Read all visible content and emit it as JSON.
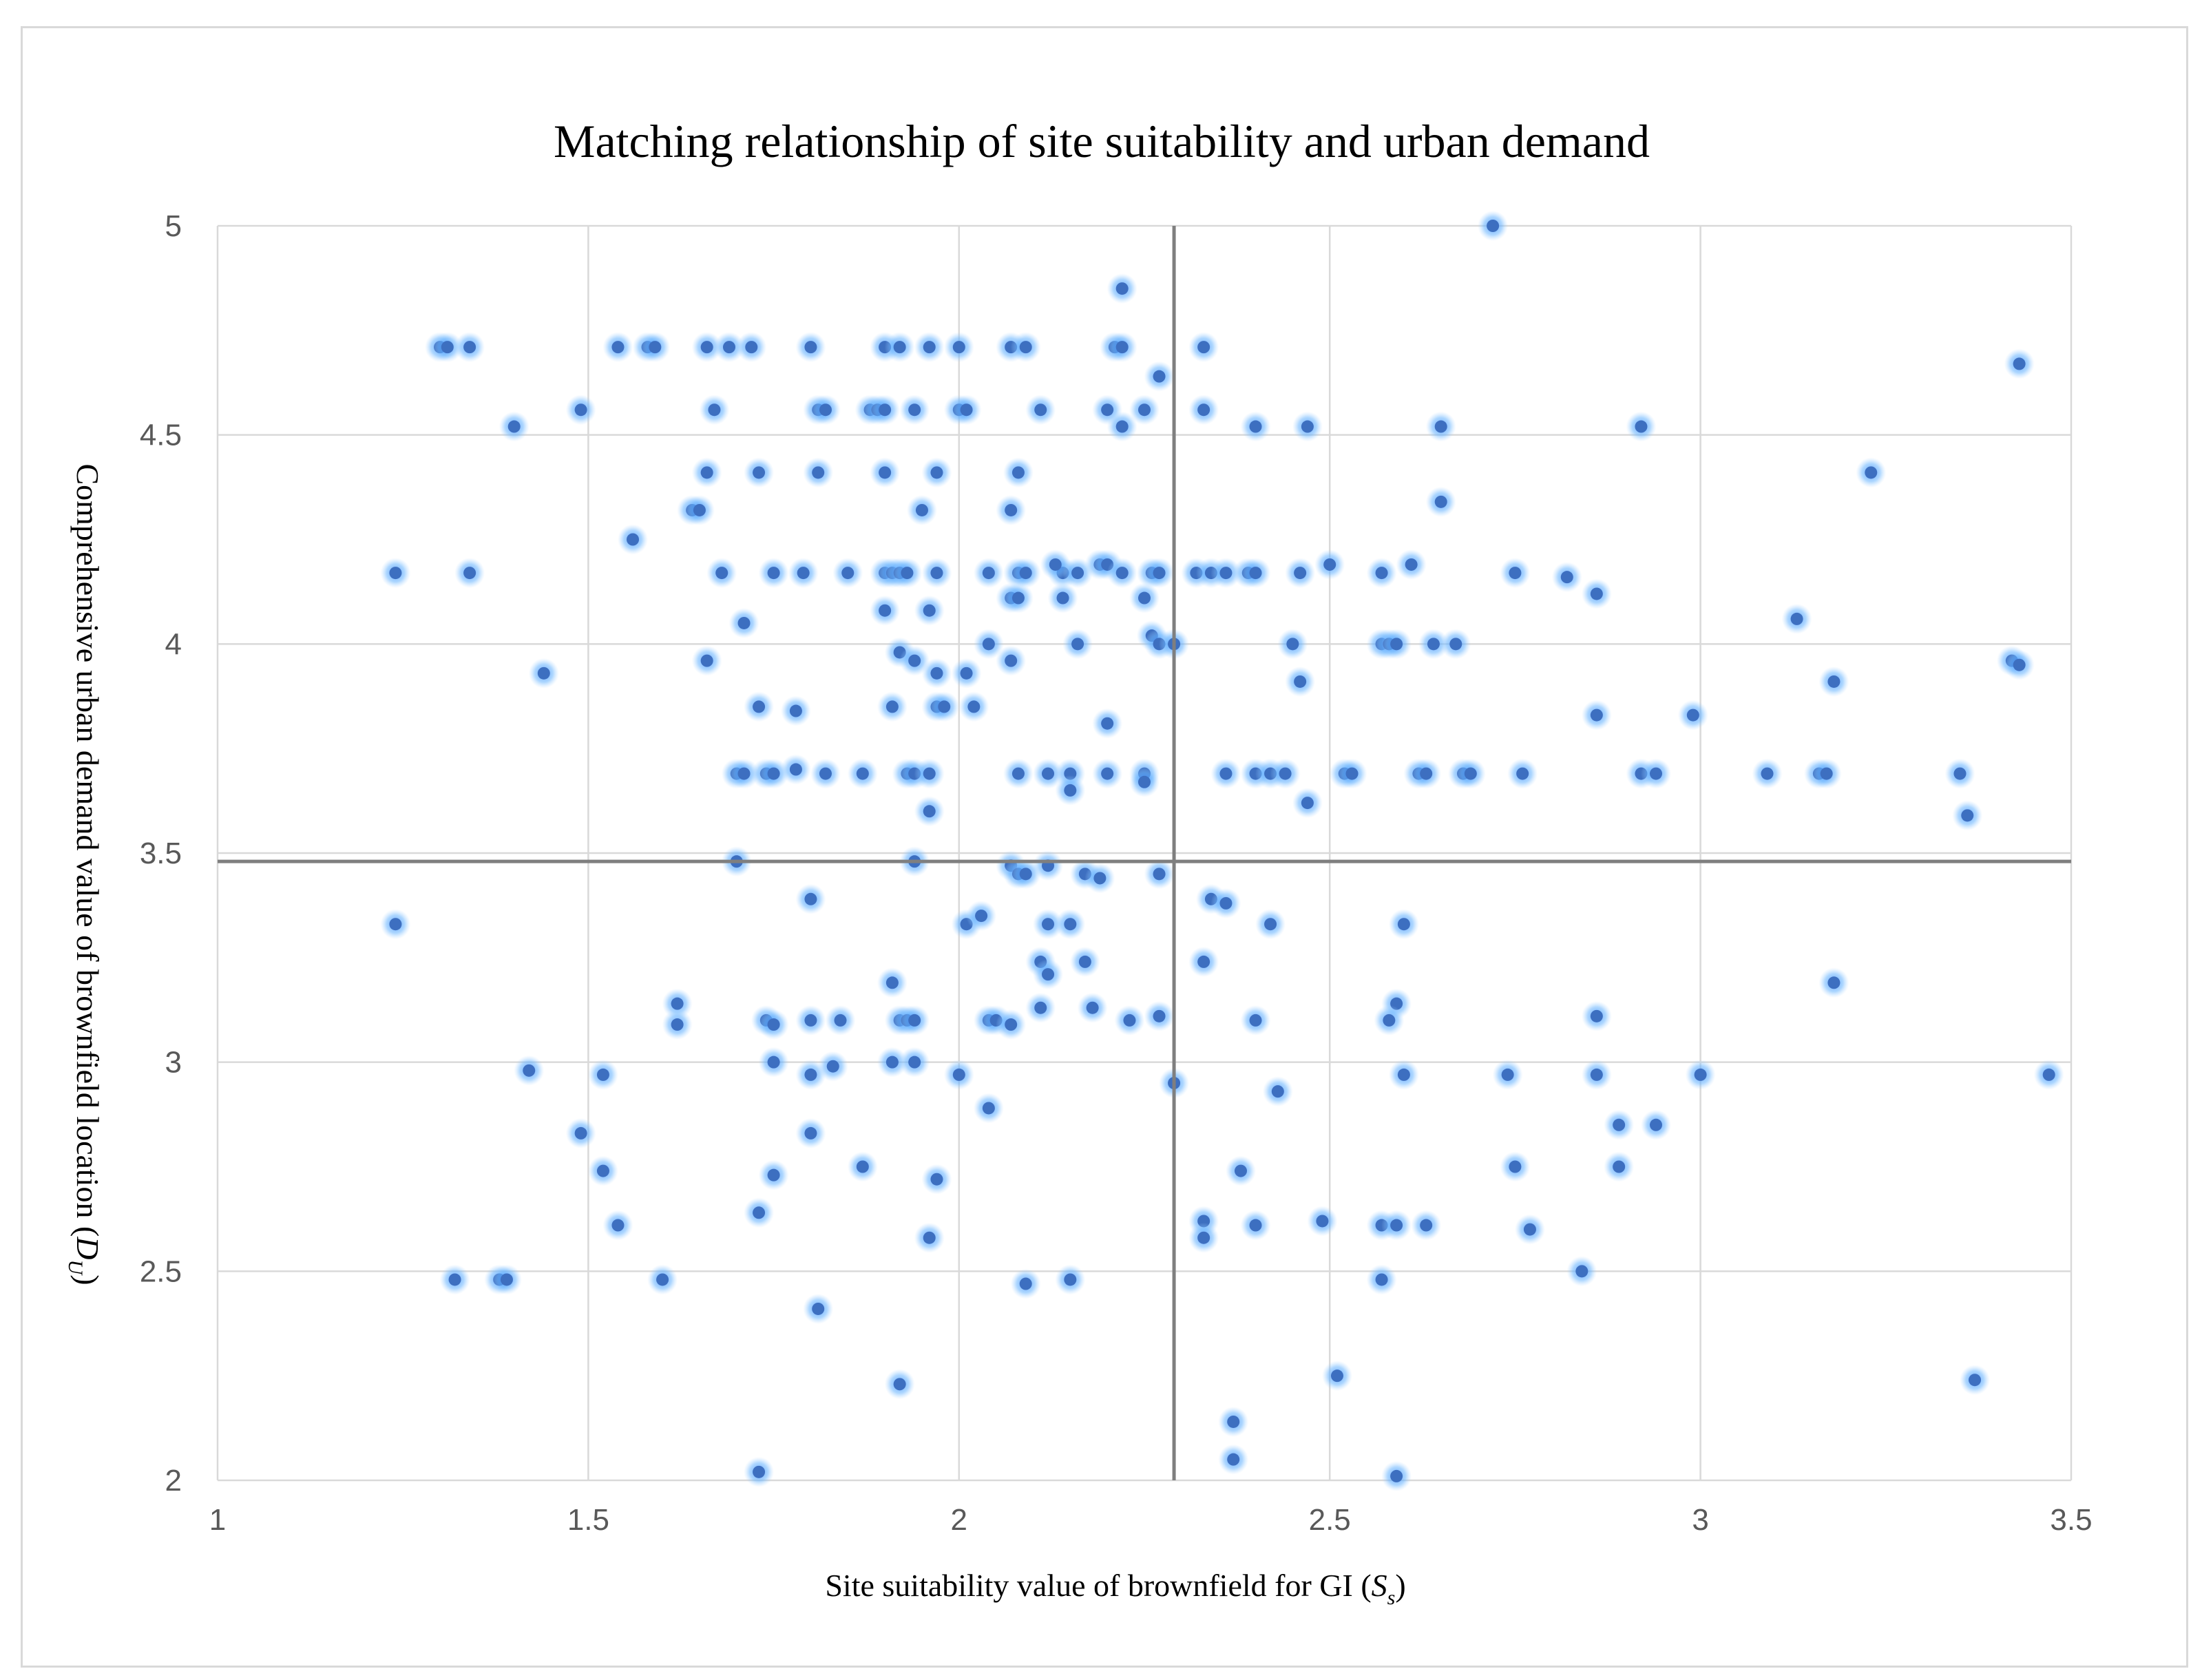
{
  "chart_data": {
    "type": "scatter",
    "title": "Matching relationship of site suitability and urban demand",
    "xlabel": {
      "text": "Site  suitability value of brownfield for GI (",
      "symbol": "S",
      "subscript": "s",
      "suffix": ")"
    },
    "ylabel": {
      "text": "Comprehensive urban demand value of brownfield location  (",
      "symbol": "D",
      "subscript": "U",
      "suffix": ")"
    },
    "xlim": [
      1,
      3.5
    ],
    "ylim": [
      2,
      5
    ],
    "xticks": [
      "1",
      "1.5",
      "2",
      "2.5",
      "3",
      "3.5"
    ],
    "yticks": [
      "2",
      "2.5",
      "3",
      "3.5",
      "4",
      "4.5",
      "5"
    ],
    "reference_lines": {
      "x": 2.29,
      "y": 3.48
    },
    "colors": {
      "point": "#3d6fc0",
      "glow": "#5aaeff",
      "grid": "#d9d9d9",
      "reference": "#7f7f7f"
    },
    "points": [
      [
        2.72,
        5.0
      ],
      [
        2.22,
        4.85
      ],
      [
        1.3,
        4.71
      ],
      [
        1.31,
        4.71
      ],
      [
        1.34,
        4.71
      ],
      [
        1.54,
        4.71
      ],
      [
        1.58,
        4.71
      ],
      [
        1.59,
        4.71
      ],
      [
        1.66,
        4.71
      ],
      [
        1.69,
        4.71
      ],
      [
        1.72,
        4.71
      ],
      [
        1.8,
        4.71
      ],
      [
        1.9,
        4.71
      ],
      [
        1.92,
        4.71
      ],
      [
        1.96,
        4.71
      ],
      [
        2.0,
        4.71
      ],
      [
        2.07,
        4.71
      ],
      [
        2.09,
        4.71
      ],
      [
        2.21,
        4.71
      ],
      [
        2.22,
        4.71
      ],
      [
        2.33,
        4.71
      ],
      [
        2.27,
        4.64
      ],
      [
        3.43,
        4.67
      ],
      [
        1.49,
        4.56
      ],
      [
        1.67,
        4.56
      ],
      [
        1.81,
        4.56
      ],
      [
        1.82,
        4.56
      ],
      [
        1.88,
        4.56
      ],
      [
        1.89,
        4.56
      ],
      [
        1.9,
        4.56
      ],
      [
        1.94,
        4.56
      ],
      [
        2.0,
        4.56
      ],
      [
        2.01,
        4.56
      ],
      [
        2.11,
        4.56
      ],
      [
        2.2,
        4.56
      ],
      [
        2.25,
        4.56
      ],
      [
        2.33,
        4.56
      ],
      [
        1.4,
        4.52
      ],
      [
        2.22,
        4.52
      ],
      [
        2.4,
        4.52
      ],
      [
        2.47,
        4.52
      ],
      [
        2.65,
        4.52
      ],
      [
        2.92,
        4.52
      ],
      [
        1.66,
        4.41
      ],
      [
        1.73,
        4.41
      ],
      [
        1.81,
        4.41
      ],
      [
        1.9,
        4.41
      ],
      [
        1.97,
        4.41
      ],
      [
        2.08,
        4.41
      ],
      [
        3.23,
        4.41
      ],
      [
        1.64,
        4.32
      ],
      [
        1.65,
        4.32
      ],
      [
        1.95,
        4.32
      ],
      [
        2.07,
        4.32
      ],
      [
        2.65,
        4.34
      ],
      [
        1.56,
        4.25
      ],
      [
        1.24,
        4.17
      ],
      [
        1.34,
        4.17
      ],
      [
        1.68,
        4.17
      ],
      [
        1.75,
        4.17
      ],
      [
        1.79,
        4.17
      ],
      [
        1.85,
        4.17
      ],
      [
        1.9,
        4.17
      ],
      [
        1.91,
        4.17
      ],
      [
        1.92,
        4.17
      ],
      [
        1.93,
        4.17
      ],
      [
        1.97,
        4.17
      ],
      [
        2.04,
        4.17
      ],
      [
        2.08,
        4.17
      ],
      [
        2.09,
        4.17
      ],
      [
        2.14,
        4.17
      ],
      [
        2.16,
        4.17
      ],
      [
        2.19,
        4.19
      ],
      [
        2.2,
        4.19
      ],
      [
        2.22,
        4.17
      ],
      [
        2.26,
        4.17
      ],
      [
        2.27,
        4.17
      ],
      [
        2.32,
        4.17
      ],
      [
        2.34,
        4.17
      ],
      [
        2.36,
        4.17
      ],
      [
        2.39,
        4.17
      ],
      [
        2.4,
        4.17
      ],
      [
        2.46,
        4.17
      ],
      [
        2.5,
        4.19
      ],
      [
        2.57,
        4.17
      ],
      [
        2.61,
        4.19
      ],
      [
        2.75,
        4.17
      ],
      [
        2.82,
        4.16
      ],
      [
        2.86,
        4.12
      ],
      [
        2.13,
        4.19
      ],
      [
        2.07,
        4.11
      ],
      [
        2.08,
        4.11
      ],
      [
        2.14,
        4.11
      ],
      [
        2.25,
        4.11
      ],
      [
        1.9,
        4.08
      ],
      [
        1.96,
        4.08
      ],
      [
        1.71,
        4.05
      ],
      [
        3.13,
        4.06
      ],
      [
        2.04,
        4.0
      ],
      [
        2.16,
        4.0
      ],
      [
        2.26,
        4.02
      ],
      [
        2.27,
        4.0
      ],
      [
        2.29,
        4.0
      ],
      [
        2.45,
        4.0
      ],
      [
        2.57,
        4.0
      ],
      [
        2.58,
        4.0
      ],
      [
        2.59,
        4.0
      ],
      [
        2.64,
        4.0
      ],
      [
        2.67,
        4.0
      ],
      [
        1.92,
        3.98
      ],
      [
        1.94,
        3.96
      ],
      [
        1.66,
        3.96
      ],
      [
        2.07,
        3.96
      ],
      [
        3.42,
        3.96
      ],
      [
        3.43,
        3.95
      ],
      [
        1.44,
        3.93
      ],
      [
        1.97,
        3.93
      ],
      [
        2.01,
        3.93
      ],
      [
        2.46,
        3.91
      ],
      [
        3.18,
        3.91
      ],
      [
        1.73,
        3.85
      ],
      [
        1.91,
        3.85
      ],
      [
        1.97,
        3.85
      ],
      [
        1.98,
        3.85
      ],
      [
        2.02,
        3.85
      ],
      [
        1.78,
        3.84
      ],
      [
        2.86,
        3.83
      ],
      [
        2.99,
        3.83
      ],
      [
        2.2,
        3.81
      ],
      [
        1.7,
        3.69
      ],
      [
        1.71,
        3.69
      ],
      [
        1.74,
        3.69
      ],
      [
        1.75,
        3.69
      ],
      [
        1.82,
        3.69
      ],
      [
        1.87,
        3.69
      ],
      [
        1.93,
        3.69
      ],
      [
        1.94,
        3.69
      ],
      [
        1.96,
        3.69
      ],
      [
        2.08,
        3.69
      ],
      [
        2.12,
        3.69
      ],
      [
        2.15,
        3.69
      ],
      [
        2.2,
        3.69
      ],
      [
        2.25,
        3.69
      ],
      [
        2.25,
        3.67
      ],
      [
        2.36,
        3.69
      ],
      [
        2.4,
        3.69
      ],
      [
        2.42,
        3.69
      ],
      [
        2.44,
        3.69
      ],
      [
        2.52,
        3.69
      ],
      [
        2.53,
        3.69
      ],
      [
        2.62,
        3.69
      ],
      [
        2.63,
        3.69
      ],
      [
        2.68,
        3.69
      ],
      [
        2.69,
        3.69
      ],
      [
        2.76,
        3.69
      ],
      [
        2.92,
        3.69
      ],
      [
        2.94,
        3.69
      ],
      [
        3.09,
        3.69
      ],
      [
        3.16,
        3.69
      ],
      [
        3.17,
        3.69
      ],
      [
        3.35,
        3.69
      ],
      [
        1.78,
        3.7
      ],
      [
        2.15,
        3.65
      ],
      [
        2.47,
        3.62
      ],
      [
        1.96,
        3.6
      ],
      [
        3.36,
        3.59
      ],
      [
        1.7,
        3.48
      ],
      [
        1.94,
        3.48
      ],
      [
        2.07,
        3.47
      ],
      [
        2.12,
        3.47
      ],
      [
        2.08,
        3.45
      ],
      [
        2.09,
        3.45
      ],
      [
        2.17,
        3.45
      ],
      [
        2.19,
        3.44
      ],
      [
        2.27,
        3.45
      ],
      [
        1.8,
        3.39
      ],
      [
        2.34,
        3.39
      ],
      [
        2.36,
        3.38
      ],
      [
        1.24,
        3.33
      ],
      [
        2.01,
        3.33
      ],
      [
        2.03,
        3.35
      ],
      [
        2.12,
        3.33
      ],
      [
        2.15,
        3.33
      ],
      [
        2.42,
        3.33
      ],
      [
        2.6,
        3.33
      ],
      [
        2.11,
        3.24
      ],
      [
        2.17,
        3.24
      ],
      [
        2.33,
        3.24
      ],
      [
        2.12,
        3.21
      ],
      [
        1.91,
        3.19
      ],
      [
        3.18,
        3.19
      ],
      [
        1.62,
        3.14
      ],
      [
        2.11,
        3.13
      ],
      [
        2.18,
        3.13
      ],
      [
        2.59,
        3.14
      ],
      [
        2.27,
        3.11
      ],
      [
        2.86,
        3.11
      ],
      [
        1.62,
        3.09
      ],
      [
        1.74,
        3.1
      ],
      [
        1.75,
        3.09
      ],
      [
        1.8,
        3.1
      ],
      [
        1.84,
        3.1
      ],
      [
        1.92,
        3.1
      ],
      [
        1.93,
        3.1
      ],
      [
        1.94,
        3.1
      ],
      [
        2.04,
        3.1
      ],
      [
        2.05,
        3.1
      ],
      [
        2.07,
        3.09
      ],
      [
        2.23,
        3.1
      ],
      [
        2.4,
        3.1
      ],
      [
        2.58,
        3.1
      ],
      [
        1.42,
        2.98
      ],
      [
        1.52,
        2.97
      ],
      [
        1.75,
        3.0
      ],
      [
        1.8,
        2.97
      ],
      [
        1.83,
        2.99
      ],
      [
        1.91,
        3.0
      ],
      [
        1.94,
        3.0
      ],
      [
        2.0,
        2.97
      ],
      [
        2.29,
        2.95
      ],
      [
        2.6,
        2.97
      ],
      [
        2.74,
        2.97
      ],
      [
        2.86,
        2.97
      ],
      [
        3.0,
        2.97
      ],
      [
        3.47,
        2.97
      ],
      [
        2.43,
        2.93
      ],
      [
        2.04,
        2.89
      ],
      [
        1.49,
        2.83
      ],
      [
        1.8,
        2.83
      ],
      [
        2.89,
        2.85
      ],
      [
        2.94,
        2.85
      ],
      [
        1.52,
        2.74
      ],
      [
        1.75,
        2.73
      ],
      [
        1.87,
        2.75
      ],
      [
        1.97,
        2.72
      ],
      [
        2.38,
        2.74
      ],
      [
        2.75,
        2.75
      ],
      [
        2.89,
        2.75
      ],
      [
        1.73,
        2.64
      ],
      [
        1.54,
        2.61
      ],
      [
        2.33,
        2.62
      ],
      [
        2.4,
        2.61
      ],
      [
        2.49,
        2.62
      ],
      [
        2.57,
        2.61
      ],
      [
        2.59,
        2.61
      ],
      [
        2.63,
        2.61
      ],
      [
        2.77,
        2.6
      ],
      [
        1.96,
        2.58
      ],
      [
        2.33,
        2.58
      ],
      [
        2.84,
        2.5
      ],
      [
        1.32,
        2.48
      ],
      [
        1.38,
        2.48
      ],
      [
        1.39,
        2.48
      ],
      [
        1.6,
        2.48
      ],
      [
        2.09,
        2.47
      ],
      [
        2.15,
        2.48
      ],
      [
        2.57,
        2.48
      ],
      [
        1.81,
        2.41
      ],
      [
        2.51,
        2.25
      ],
      [
        1.92,
        2.23
      ],
      [
        3.37,
        2.24
      ],
      [
        2.37,
        2.14
      ],
      [
        2.37,
        2.05
      ],
      [
        1.73,
        2.02
      ],
      [
        2.59,
        2.01
      ]
    ]
  }
}
